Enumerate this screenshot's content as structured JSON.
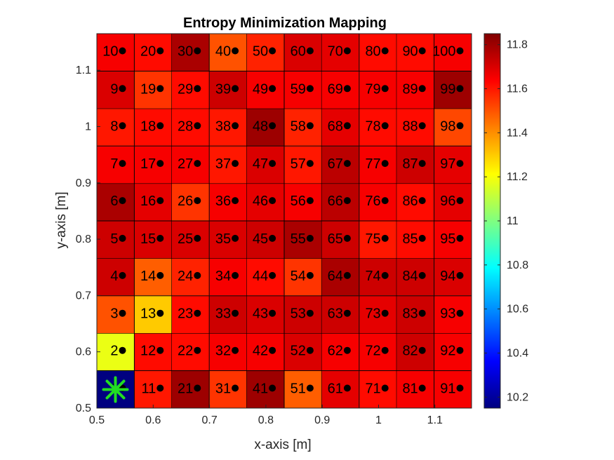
{
  "chart_data": {
    "type": "heatmap",
    "title": "Entropy Minimization Mapping",
    "xlabel": "x-axis [m]",
    "ylabel": "y-axis [m]",
    "xlim": [
      0.5,
      1.165
    ],
    "ylim": [
      0.5,
      1.165
    ],
    "x_ticks": [
      "0.5",
      "0.6",
      "0.7",
      "0.8",
      "0.9",
      "1",
      "1.1"
    ],
    "y_ticks": [
      "0.5",
      "0.6",
      "0.7",
      "0.8",
      "0.9",
      "1",
      "1.1"
    ],
    "x_centers": [
      0.533,
      0.6,
      0.666,
      0.733,
      0.799,
      0.866,
      0.932,
      0.999,
      1.065,
      1.132
    ],
    "y_centers": [
      0.533,
      0.6,
      0.666,
      0.733,
      0.799,
      0.866,
      0.932,
      0.999,
      1.065,
      1.132
    ],
    "cell_step": 0.0665,
    "colorbar": {
      "colormap": "jet",
      "limits": [
        10.15,
        11.85
      ],
      "ticks": [
        "10.2",
        "10.4",
        "10.6",
        "10.8",
        "11",
        "11.2",
        "11.4",
        "11.6",
        "11.8"
      ]
    },
    "cells": [
      {
        "label": "1",
        "value": 10.15
      },
      {
        "label": "2",
        "value": 11.18
      },
      {
        "label": "3",
        "value": 11.5
      },
      {
        "label": "4",
        "value": 11.72
      },
      {
        "label": "5",
        "value": 11.72
      },
      {
        "label": "6",
        "value": 11.78
      },
      {
        "label": "7",
        "value": 11.65
      },
      {
        "label": "8",
        "value": 11.6
      },
      {
        "label": "9",
        "value": 11.7
      },
      {
        "label": "10",
        "value": 11.65
      },
      {
        "label": "11",
        "value": 11.6
      },
      {
        "label": "12",
        "value": 11.62
      },
      {
        "label": "13",
        "value": 11.3
      },
      {
        "label": "14",
        "value": 11.48
      },
      {
        "label": "15",
        "value": 11.7
      },
      {
        "label": "16",
        "value": 11.68
      },
      {
        "label": "17",
        "value": 11.65
      },
      {
        "label": "18",
        "value": 11.62
      },
      {
        "label": "19",
        "value": 11.55
      },
      {
        "label": "20",
        "value": 11.62
      },
      {
        "label": "21",
        "value": 11.8
      },
      {
        "label": "22",
        "value": 11.62
      },
      {
        "label": "23",
        "value": 11.62
      },
      {
        "label": "24",
        "value": 11.58
      },
      {
        "label": "25",
        "value": 11.7
      },
      {
        "label": "26",
        "value": 11.55
      },
      {
        "label": "27",
        "value": 11.65
      },
      {
        "label": "28",
        "value": 11.62
      },
      {
        "label": "29",
        "value": 11.62
      },
      {
        "label": "30",
        "value": 11.78
      },
      {
        "label": "31",
        "value": 11.55
      },
      {
        "label": "32",
        "value": 11.65
      },
      {
        "label": "33",
        "value": 11.72
      },
      {
        "label": "34",
        "value": 11.65
      },
      {
        "label": "35",
        "value": 11.7
      },
      {
        "label": "36",
        "value": 11.65
      },
      {
        "label": "37",
        "value": 11.6
      },
      {
        "label": "38",
        "value": 11.6
      },
      {
        "label": "39",
        "value": 11.72
      },
      {
        "label": "40",
        "value": 11.5
      },
      {
        "label": "41",
        "value": 11.8
      },
      {
        "label": "42",
        "value": 11.65
      },
      {
        "label": "43",
        "value": 11.7
      },
      {
        "label": "44",
        "value": 11.62
      },
      {
        "label": "45",
        "value": 11.72
      },
      {
        "label": "46",
        "value": 11.68
      },
      {
        "label": "47",
        "value": 11.7
      },
      {
        "label": "48",
        "value": 11.8
      },
      {
        "label": "49",
        "value": 11.65
      },
      {
        "label": "50",
        "value": 11.58
      },
      {
        "label": "51",
        "value": 11.48
      },
      {
        "label": "52",
        "value": 11.7
      },
      {
        "label": "53",
        "value": 11.72
      },
      {
        "label": "54",
        "value": 11.55
      },
      {
        "label": "55",
        "value": 11.78
      },
      {
        "label": "56",
        "value": 11.65
      },
      {
        "label": "57",
        "value": 11.6
      },
      {
        "label": "58",
        "value": 11.58
      },
      {
        "label": "59",
        "value": 11.65
      },
      {
        "label": "60",
        "value": 11.7
      },
      {
        "label": "61",
        "value": 11.68
      },
      {
        "label": "62",
        "value": 11.65
      },
      {
        "label": "63",
        "value": 11.72
      },
      {
        "label": "64",
        "value": 11.78
      },
      {
        "label": "65",
        "value": 11.72
      },
      {
        "label": "66",
        "value": 11.75
      },
      {
        "label": "67",
        "value": 11.75
      },
      {
        "label": "68",
        "value": 11.68
      },
      {
        "label": "69",
        "value": 11.65
      },
      {
        "label": "70",
        "value": 11.68
      },
      {
        "label": "71",
        "value": 11.62
      },
      {
        "label": "72",
        "value": 11.65
      },
      {
        "label": "73",
        "value": 11.68
      },
      {
        "label": "74",
        "value": 11.72
      },
      {
        "label": "75",
        "value": 11.6
      },
      {
        "label": "76",
        "value": 11.65
      },
      {
        "label": "77",
        "value": 11.65
      },
      {
        "label": "78",
        "value": 11.62
      },
      {
        "label": "79",
        "value": 11.65
      },
      {
        "label": "80",
        "value": 11.62
      },
      {
        "label": "81",
        "value": 11.65
      },
      {
        "label": "82",
        "value": 11.72
      },
      {
        "label": "83",
        "value": 11.72
      },
      {
        "label": "84",
        "value": 11.72
      },
      {
        "label": "85",
        "value": 11.62
      },
      {
        "label": "86",
        "value": 11.62
      },
      {
        "label": "87",
        "value": 11.72
      },
      {
        "label": "88",
        "value": 11.62
      },
      {
        "label": "89",
        "value": 11.65
      },
      {
        "label": "90",
        "value": 11.62
      },
      {
        "label": "91",
        "value": 11.65
      },
      {
        "label": "92",
        "value": 11.65
      },
      {
        "label": "93",
        "value": 11.65
      },
      {
        "label": "94",
        "value": 11.7
      },
      {
        "label": "95",
        "value": 11.65
      },
      {
        "label": "96",
        "value": 11.68
      },
      {
        "label": "97",
        "value": 11.68
      },
      {
        "label": "98",
        "value": 11.52
      },
      {
        "label": "99",
        "value": 11.8
      },
      {
        "label": "100",
        "value": 11.65
      }
    ],
    "best_point": {
      "x": 0.533,
      "y": 0.533,
      "marker": "asterisk",
      "color": "#22dd22"
    }
  }
}
